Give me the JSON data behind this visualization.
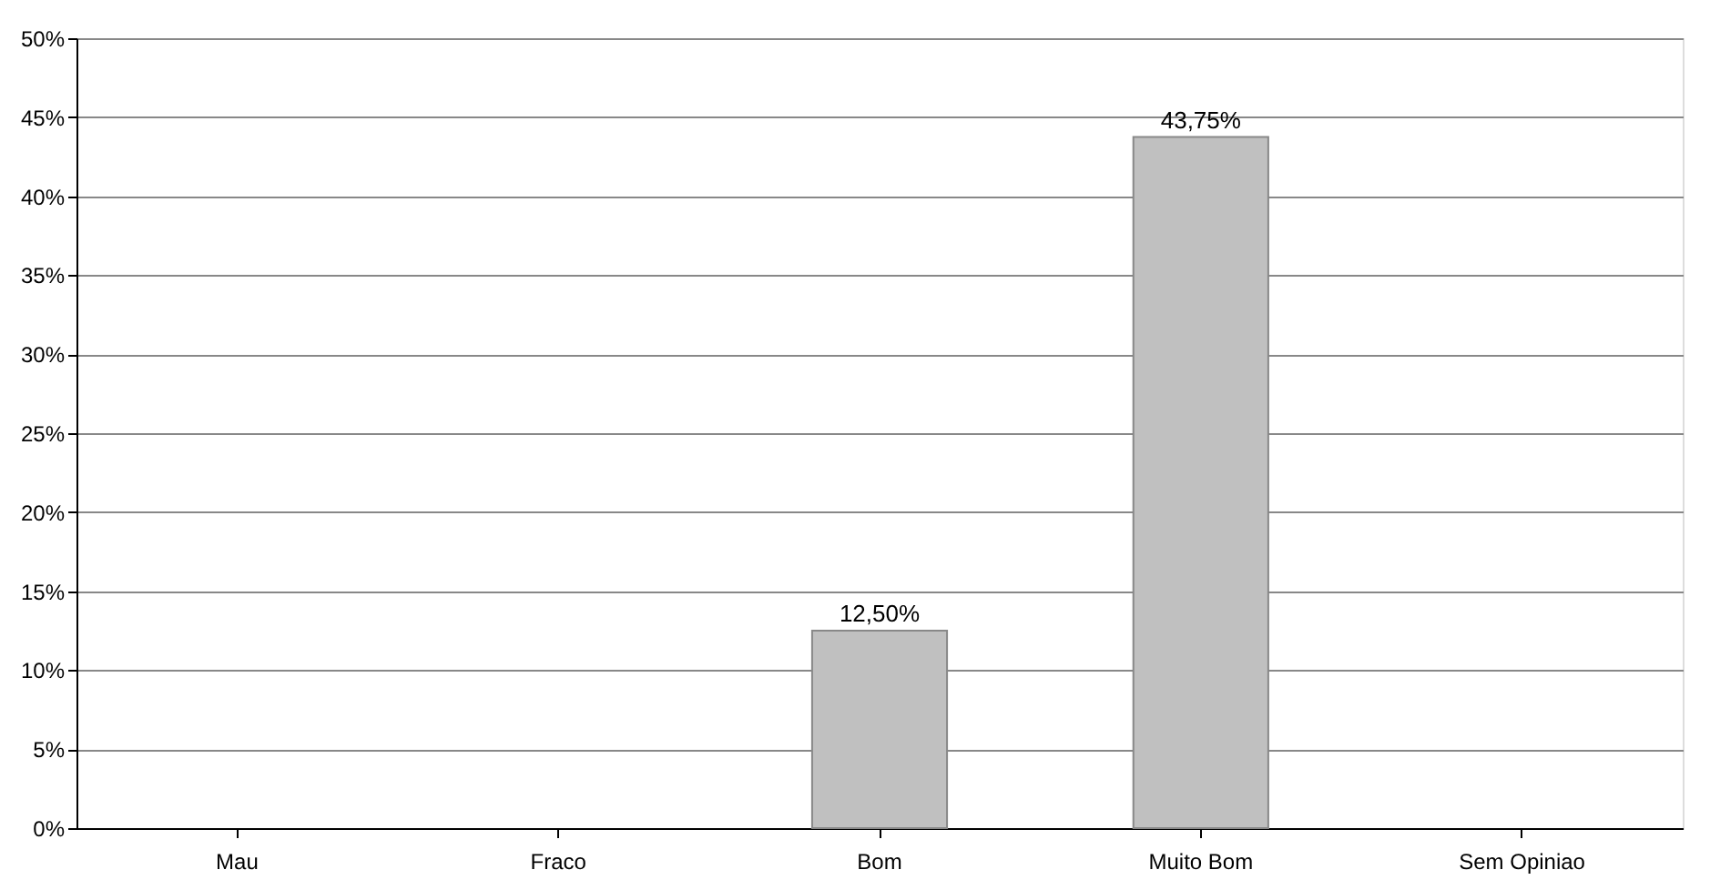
{
  "chart_data": {
    "type": "bar",
    "categories": [
      "Mau",
      "Fraco",
      "Bom",
      "Muito Bom",
      "Sem Opiniao"
    ],
    "values": [
      0,
      0,
      12.5,
      43.75,
      0
    ],
    "value_labels": [
      null,
      null,
      "12,50%",
      "43,75%",
      null
    ],
    "color": "#c0c0c0",
    "ylim": [
      0,
      50
    ],
    "yticks": [
      {
        "value": 0,
        "label": "0%"
      },
      {
        "value": 5,
        "label": "5%"
      },
      {
        "value": 10,
        "label": "10%"
      },
      {
        "value": 15,
        "label": "15%"
      },
      {
        "value": 20,
        "label": "20%"
      },
      {
        "value": 25,
        "label": "25%"
      },
      {
        "value": 30,
        "label": "30%"
      },
      {
        "value": 35,
        "label": "35%"
      },
      {
        "value": 40,
        "label": "40%"
      },
      {
        "value": 45,
        "label": "45%"
      },
      {
        "value": 50,
        "label": "50%"
      }
    ],
    "grid": "y"
  }
}
